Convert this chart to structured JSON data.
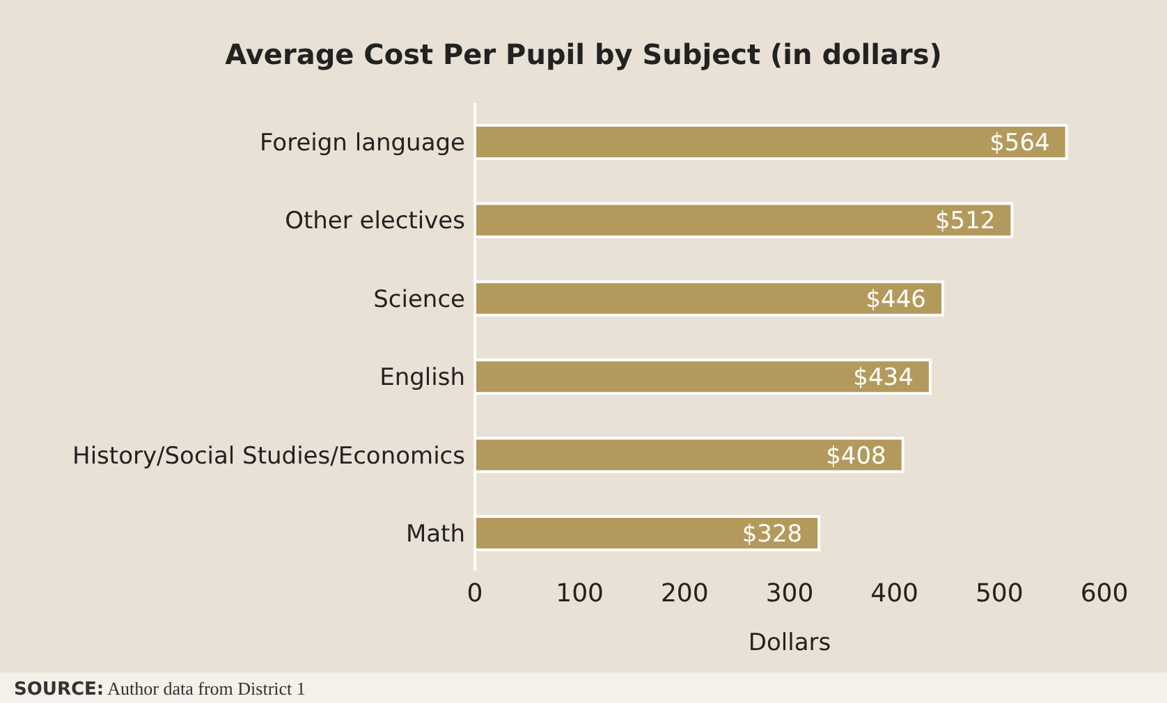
{
  "chart_data": {
    "type": "bar",
    "orientation": "horizontal",
    "title": "Average Cost Per Pupil by Subject (in dollars)",
    "xlabel": "Dollars",
    "categories": [
      "Foreign language",
      "Other electives",
      "Science",
      "English",
      "History/Social Studies/Economics",
      "Math"
    ],
    "values": [
      564,
      512,
      446,
      434,
      408,
      328
    ],
    "value_labels": [
      "$564",
      "$512",
      "$446",
      "$434",
      "$408",
      "$328"
    ],
    "color": "#b39a5c",
    "xlim": [
      0,
      600
    ],
    "xticks": [
      0,
      100,
      200,
      300,
      400,
      500,
      600
    ],
    "grid": false,
    "annotations": [
      "SOURCE: Author data from District 1"
    ]
  }
}
